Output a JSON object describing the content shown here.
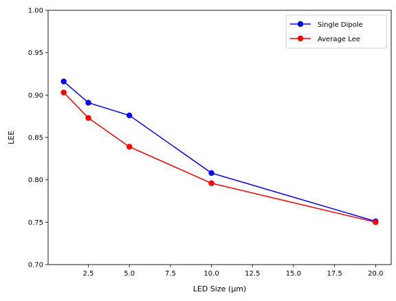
{
  "chart_data": {
    "type": "line",
    "title": "",
    "xlabel": "LED Size (μm)",
    "ylabel": "LEE",
    "xlim": [
      0.05,
      20.95
    ],
    "ylim": [
      0.7,
      1.0
    ],
    "xticks": [
      2.5,
      5.0,
      7.5,
      10.0,
      12.5,
      15.0,
      17.5,
      20.0
    ],
    "xtick_labels": [
      "2.5",
      "5.0",
      "7.5",
      "10.0",
      "12.5",
      "15.0",
      "17.5",
      "20.0"
    ],
    "yticks": [
      0.7,
      0.75,
      0.8,
      0.85,
      0.9,
      0.95,
      1.0
    ],
    "ytick_labels": [
      "0.70",
      "0.75",
      "0.80",
      "0.85",
      "0.90",
      "0.95",
      "1.00"
    ],
    "grid": false,
    "legend_position": "top-right",
    "x": [
      1,
      2.5,
      5,
      10,
      20
    ],
    "series": [
      {
        "name": "Single Dipole",
        "color": "#0000ff",
        "marker": "circle",
        "values": [
          0.916,
          0.891,
          0.876,
          0.808,
          0.751
        ]
      },
      {
        "name": "Average Lee",
        "color": "#ff0000",
        "marker": "circle",
        "values": [
          0.903,
          0.873,
          0.839,
          0.796,
          0.75
        ]
      }
    ]
  }
}
